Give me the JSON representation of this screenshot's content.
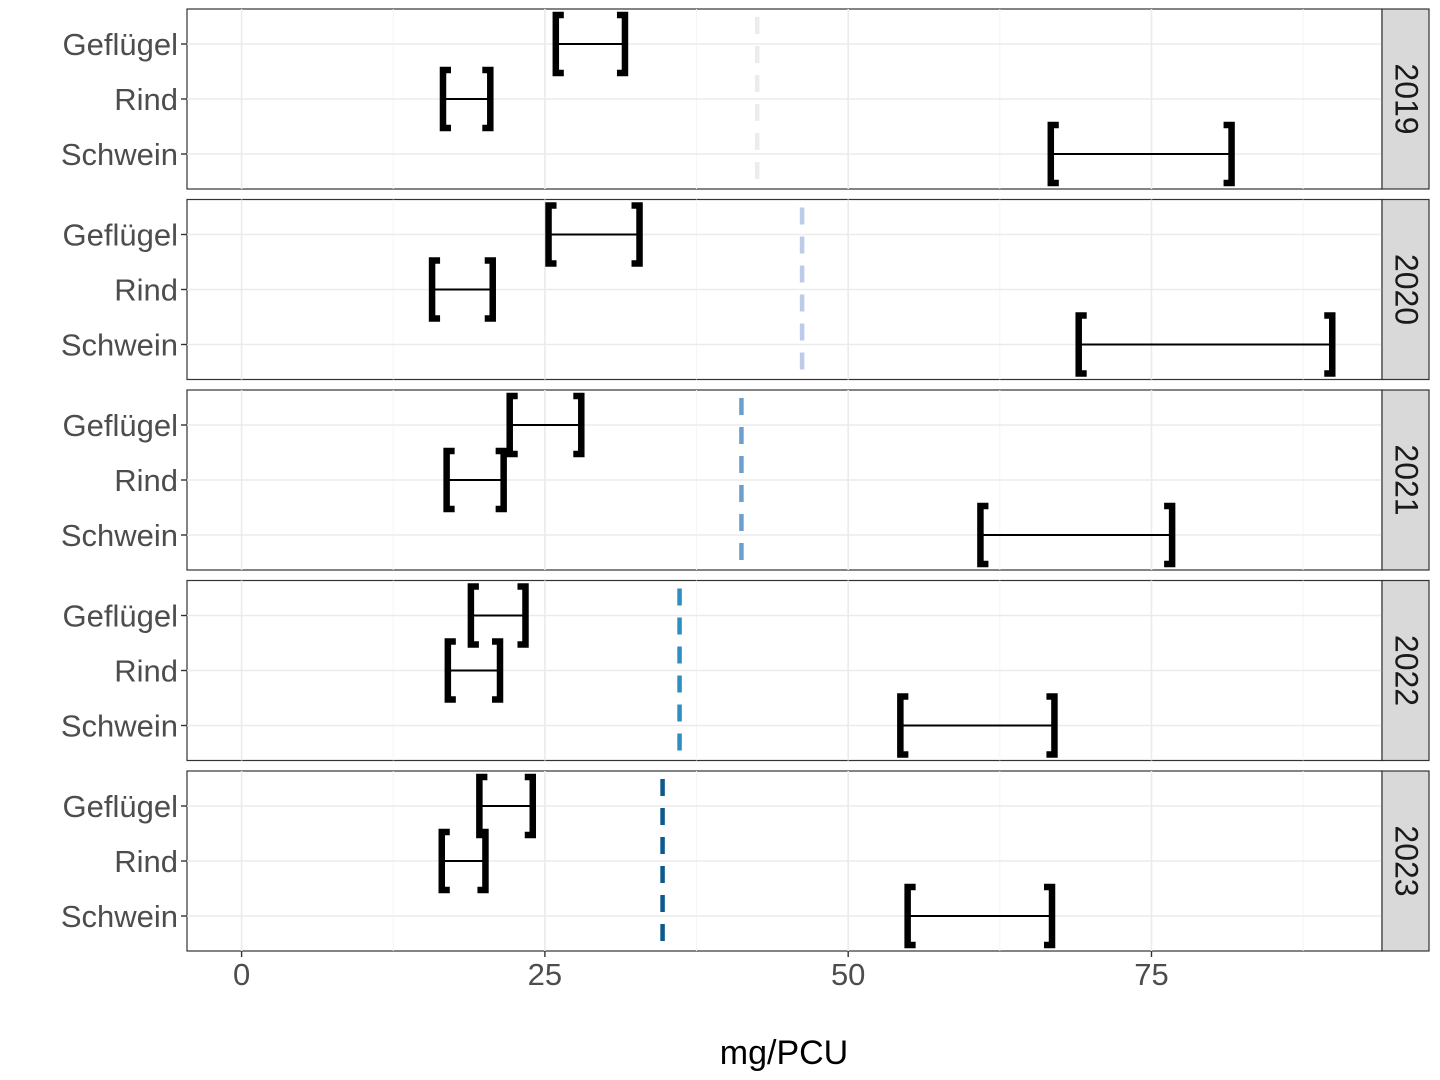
{
  "chart_data": {
    "type": "interval",
    "xlabel": "mg/PCU",
    "ylabel": "",
    "xlim": [
      -4.5,
      94
    ],
    "xticks": [
      0,
      25,
      50,
      75
    ],
    "categories": [
      "Geflügel",
      "Rind",
      "Schwein"
    ],
    "facets": [
      {
        "label": "2019",
        "reference": 42.5,
        "reference_color": "#ececec",
        "intervals": [
          {
            "category": "Geflügel",
            "low": 25.9,
            "high": 31.6
          },
          {
            "category": "Rind",
            "low": 16.6,
            "high": 20.5
          },
          {
            "category": "Schwein",
            "low": 66.7,
            "high": 81.6
          }
        ]
      },
      {
        "label": "2020",
        "reference": 46.2,
        "reference_color": "#bccbe8",
        "intervals": [
          {
            "category": "Geflügel",
            "low": 25.3,
            "high": 32.8
          },
          {
            "category": "Rind",
            "low": 15.7,
            "high": 20.7
          },
          {
            "category": "Schwein",
            "low": 69.0,
            "high": 89.9
          }
        ]
      },
      {
        "label": "2021",
        "reference": 41.2,
        "reference_color": "#6a9fcf",
        "intervals": [
          {
            "category": "Geflügel",
            "low": 22.1,
            "high": 28.0
          },
          {
            "category": "Rind",
            "low": 16.9,
            "high": 21.6
          },
          {
            "category": "Schwein",
            "low": 60.9,
            "high": 76.7
          }
        ]
      },
      {
        "label": "2022",
        "reference": 36.1,
        "reference_color": "#2c8ec1",
        "intervals": [
          {
            "category": "Geflügel",
            "low": 18.9,
            "high": 23.4
          },
          {
            "category": "Rind",
            "low": 17.0,
            "high": 21.3
          },
          {
            "category": "Schwein",
            "low": 54.3,
            "high": 67.0
          }
        ]
      },
      {
        "label": "2023",
        "reference": 34.7,
        "reference_color": "#0d5a8d",
        "intervals": [
          {
            "category": "Geflügel",
            "low": 19.6,
            "high": 24.0
          },
          {
            "category": "Rind",
            "low": 16.5,
            "high": 20.1
          },
          {
            "category": "Schwein",
            "low": 54.9,
            "high": 66.8
          }
        ]
      }
    ],
    "grid": true,
    "legend": "none"
  }
}
